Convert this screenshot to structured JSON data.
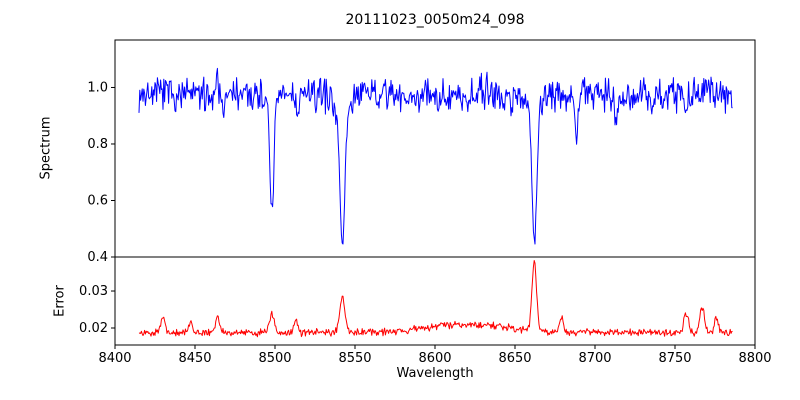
{
  "chart_data": {
    "type": "line",
    "title": "20111023_0050m24_098",
    "xlabel": "Wavelength",
    "xlim": [
      8400,
      8800
    ],
    "xticks": [
      8400,
      8450,
      8500,
      8550,
      8600,
      8650,
      8700,
      8750,
      8800
    ],
    "seed": 7,
    "panels": [
      {
        "name": "spectrum",
        "ylabel": "Spectrum",
        "ylim": [
          0.4,
          1.168
        ],
        "yticks": [
          "0.4",
          "0.6",
          "0.8",
          "1.0"
        ],
        "color": "#0000ff",
        "legend": "none",
        "grid": false,
        "model": {
          "x_start": 8415,
          "x_end": 8786,
          "step": 0.5,
          "continuum": 0.975,
          "noise_amp": 0.07,
          "spike_prob": 0.015,
          "spike_amp": 0.05,
          "absorption_lines": [
            {
              "center": 8498.0,
              "depth": 0.36,
              "sigma": 1.2
            },
            {
              "center": 8498.0,
              "depth": 0.05,
              "sigma": 3.0
            },
            {
              "center": 8542.1,
              "depth": 0.47,
              "sigma": 1.5
            },
            {
              "center": 8542.1,
              "depth": 0.07,
              "sigma": 4.0
            },
            {
              "center": 8662.1,
              "depth": 0.46,
              "sigma": 1.4
            },
            {
              "center": 8662.1,
              "depth": 0.07,
              "sigma": 4.0
            },
            {
              "center": 8468.5,
              "depth": 0.05,
              "sigma": 0.9
            },
            {
              "center": 8514.0,
              "depth": 0.07,
              "sigma": 0.9
            },
            {
              "center": 8582.0,
              "depth": 0.05,
              "sigma": 0.8
            },
            {
              "center": 8598.0,
              "depth": 0.04,
              "sigma": 0.8
            },
            {
              "center": 8648.0,
              "depth": 0.05,
              "sigma": 0.8
            },
            {
              "center": 8688.6,
              "depth": 0.12,
              "sigma": 1.0
            },
            {
              "center": 8713.0,
              "depth": 0.09,
              "sigma": 0.9
            },
            {
              "center": 8736.0,
              "depth": 0.05,
              "sigma": 0.8
            },
            {
              "center": 8757.0,
              "depth": 0.05,
              "sigma": 0.8
            }
          ],
          "emission_spikes": [
            {
              "center": 8464.0,
              "height": 0.1,
              "sigma": 0.7
            },
            {
              "center": 8629.0,
              "height": 0.05,
              "sigma": 0.6
            },
            {
              "center": 8700.0,
              "height": 0.04,
              "sigma": 0.6
            }
          ]
        }
      },
      {
        "name": "error",
        "ylabel": "Error",
        "ylim": [
          0.0154,
          0.0392
        ],
        "yticks": [
          "0.02",
          "0.03"
        ],
        "color": "#ff0000",
        "legend": "none",
        "grid": false,
        "model": {
          "x_start": 8415,
          "x_end": 8786,
          "step": 0.5,
          "baseline": 0.0188,
          "noise_amp": 0.0012,
          "peaks": [
            {
              "center": 8430,
              "height": 0.0042,
              "sigma": 1.3
            },
            {
              "center": 8447,
              "height": 0.0028,
              "sigma": 1.1
            },
            {
              "center": 8464,
              "height": 0.0045,
              "sigma": 1.2
            },
            {
              "center": 8498,
              "height": 0.005,
              "sigma": 1.4
            },
            {
              "center": 8513,
              "height": 0.0032,
              "sigma": 1.1
            },
            {
              "center": 8542,
              "height": 0.0095,
              "sigma": 1.6
            },
            {
              "center": 8620,
              "height": 0.0022,
              "sigma": 25
            },
            {
              "center": 8662,
              "height": 0.019,
              "sigma": 1.4
            },
            {
              "center": 8679,
              "height": 0.0042,
              "sigma": 1.2
            },
            {
              "center": 8757,
              "height": 0.0052,
              "sigma": 1.4
            },
            {
              "center": 8767,
              "height": 0.0068,
              "sigma": 1.4
            },
            {
              "center": 8776,
              "height": 0.004,
              "sigma": 1.2
            }
          ]
        }
      }
    ]
  }
}
